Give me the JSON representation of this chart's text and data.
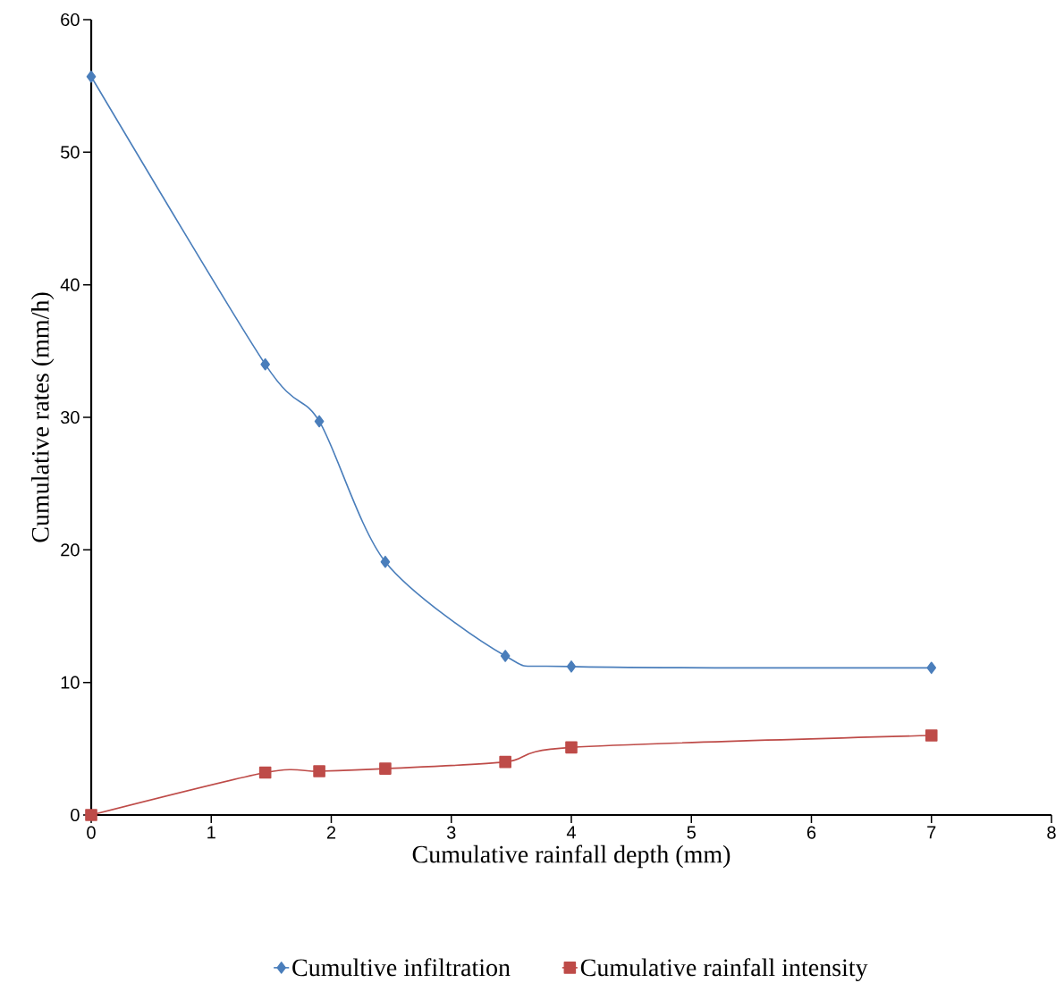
{
  "chart_data": {
    "type": "line",
    "xlabel": "Cumulative rainfall depth (mm)",
    "ylabel": "Cumulative rates (mm/h)",
    "x": [
      0,
      1.45,
      1.9,
      2.45,
      3.45,
      4,
      7
    ],
    "series": [
      {
        "name": "Cumultive infiltration",
        "color": "#4a7ebb",
        "marker": "diamond",
        "values": [
          55.7,
          34.0,
          29.7,
          19.1,
          12.0,
          11.2,
          11.1
        ]
      },
      {
        "name": "Cumulative rainfall  intensity",
        "color": "#be4b48",
        "marker": "square",
        "values": [
          0,
          3.2,
          3.3,
          3.5,
          4.0,
          5.1,
          6.0
        ]
      }
    ],
    "xlim": [
      0,
      8
    ],
    "xticks": [
      0,
      1,
      2,
      3,
      4,
      5,
      6,
      7,
      8
    ],
    "ylim": [
      0,
      60
    ],
    "yticks": [
      0,
      10,
      20,
      30,
      40,
      50,
      60
    ],
    "grid": false,
    "legend": "bottom",
    "line_style": "solid"
  }
}
